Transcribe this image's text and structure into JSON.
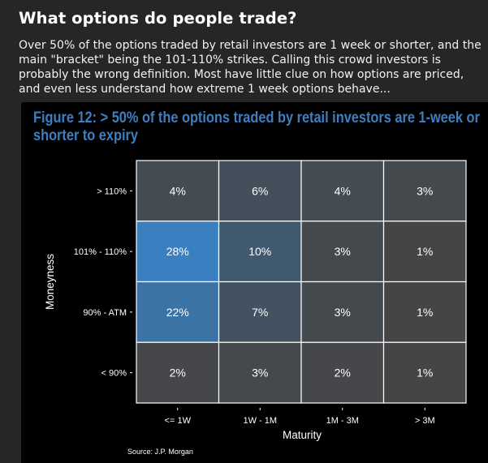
{
  "header": {
    "title": "What options do people trade?",
    "intro": "Over 50% of the options traded by retail investors are 1 week or shorter, and the main \"bracket\" being the 101-110% strikes. Calling this crowd investors is probably the wrong definition. Most have little clue on how options are priced, and even less understand how extreme 1 week options behave..."
  },
  "chart_data": {
    "type": "heatmap",
    "title": "Figure 12: > 50% of the options traded by retail investors are 1-week or shorter to expiry",
    "xlabel": "Maturity",
    "ylabel": "Moneyness",
    "x_categories": [
      "<= 1W",
      "1W - 1M",
      "1M - 3M",
      "> 3M"
    ],
    "y_categories": [
      "> 110%",
      "101% - 110%",
      "90% - ATM",
      "< 90%"
    ],
    "values": [
      [
        4,
        6,
        4,
        3
      ],
      [
        28,
        10,
        3,
        1
      ],
      [
        22,
        7,
        3,
        1
      ],
      [
        2,
        3,
        2,
        1
      ]
    ],
    "value_format": "{}%",
    "color_low": "#454545",
    "color_high": "#3a80c0",
    "source": "Source: J.P. Morgan"
  }
}
